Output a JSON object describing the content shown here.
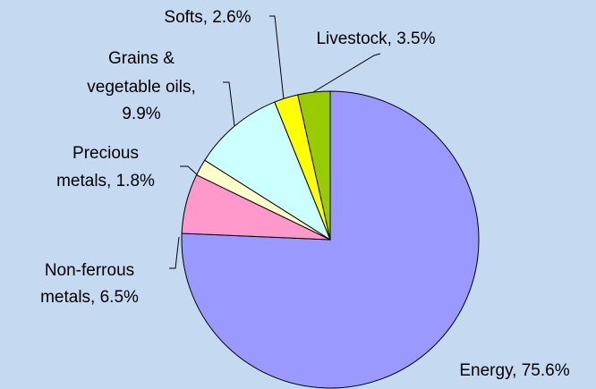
{
  "chart_data": {
    "type": "pie",
    "categories": [
      "Energy",
      "Non-ferrous metals",
      "Precious metals",
      "Grains & vegetable oils",
      "Softs",
      "Livestock"
    ],
    "values": [
      75.6,
      6.5,
      1.8,
      9.9,
      2.6,
      3.5
    ],
    "value_labels": [
      [
        "Energy, 75.6%"
      ],
      [
        "Non-ferrous",
        "metals, 6.5%"
      ],
      [
        "Precious",
        "metals, 1.8%"
      ],
      [
        "Grains &",
        "vegetable oils,",
        "9.9%"
      ],
      [
        "Softs, 2.6%"
      ],
      [
        "Livestock, 3.5%"
      ]
    ],
    "colors": [
      "#9999ff",
      "#ff99cc",
      "#ffffcc",
      "#ccffff",
      "#ffff00",
      "#99cc00"
    ]
  }
}
